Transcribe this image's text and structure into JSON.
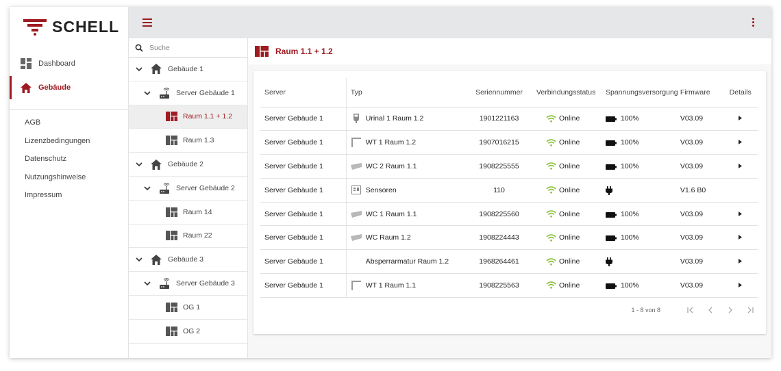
{
  "brand": {
    "name": "SCHELL",
    "accent": "#9e1b21"
  },
  "sidebar": {
    "nav": [
      {
        "label": "Dashboard",
        "icon": "dashboard-icon"
      },
      {
        "label": "Gebäude",
        "icon": "home-icon"
      }
    ],
    "links": [
      "AGB",
      "Lizenzbedingungen",
      "Datenschutz",
      "Nutzungshinweise",
      "Impressum"
    ]
  },
  "tree": {
    "search_placeholder": "Suche",
    "nodes": [
      {
        "label": "Gebäude 1",
        "level": 0,
        "icon": "home-icon"
      },
      {
        "label": "Server Gebäude 1",
        "level": 1,
        "icon": "router-icon"
      },
      {
        "label": "Raum 1.1 + 1.2",
        "level": 2,
        "icon": "room-icon",
        "selected": true
      },
      {
        "label": "Raum 1.3",
        "level": 2,
        "icon": "room-icon"
      },
      {
        "label": "Gebäude 2",
        "level": 0,
        "icon": "home-icon"
      },
      {
        "label": "Server Gebäude 2",
        "level": 1,
        "icon": "router-icon"
      },
      {
        "label": "Raum 14",
        "level": 2,
        "icon": "room-icon"
      },
      {
        "label": "Raum 22",
        "level": 2,
        "icon": "room-icon"
      },
      {
        "label": "Gebäude 3",
        "level": 0,
        "icon": "home-icon"
      },
      {
        "label": "Server Gebäude 3",
        "level": 1,
        "icon": "router-icon"
      },
      {
        "label": "OG 1",
        "level": 2,
        "icon": "room-icon"
      },
      {
        "label": "OG 2",
        "level": 2,
        "icon": "room-icon"
      }
    ]
  },
  "main": {
    "title": "Raum 1.1 + 1.2",
    "table": {
      "headers": [
        "Server",
        "Typ",
        "Seriennummer",
        "Verbindungsstatus",
        "Spannungsversorgung",
        "Firmware",
        "Details"
      ],
      "rows": [
        {
          "server": "Server Gebäude 1",
          "typ": "Urinal 1 Raum 1.2",
          "typ_icon": "urinal-icon",
          "serial": "1901221163",
          "status": "Online",
          "power": "100%",
          "power_icon": "battery-icon",
          "firmware": "V03.09",
          "details": true
        },
        {
          "server": "Server Gebäude 1",
          "typ": "WT 1 Raum 1.2",
          "typ_icon": "washbasin-icon",
          "serial": "1907016215",
          "status": "Online",
          "power": "100%",
          "power_icon": "battery-icon",
          "firmware": "V03.09",
          "details": true
        },
        {
          "server": "Server Gebäude 1",
          "typ": "WC 2 Raum 1.1",
          "typ_icon": "wc-icon",
          "serial": "1908225555",
          "status": "Online",
          "power": "100%",
          "power_icon": "battery-icon",
          "firmware": "V03.09",
          "details": true
        },
        {
          "server": "Server Gebäude 1",
          "typ": "Sensoren",
          "typ_icon": "sensor-icon",
          "serial": "110",
          "status": "Online",
          "power": "",
          "power_icon": "plug-icon",
          "firmware": "V1.6 B0",
          "details": false
        },
        {
          "server": "Server Gebäude 1",
          "typ": "WC 1 Raum 1.1",
          "typ_icon": "wc-icon",
          "serial": "1908225560",
          "status": "Online",
          "power": "100%",
          "power_icon": "battery-icon",
          "firmware": "V03.09",
          "details": true
        },
        {
          "server": "Server Gebäude 1",
          "typ": "WC Raum 1.2",
          "typ_icon": "wc-icon",
          "serial": "1908224443",
          "status": "Online",
          "power": "100%",
          "power_icon": "battery-icon",
          "firmware": "V03.09",
          "details": true
        },
        {
          "server": "Server Gebäude 1",
          "typ": "Absperrarmatur Raum 1.2",
          "typ_icon": "",
          "serial": "1968264461",
          "status": "Online",
          "power": "",
          "power_icon": "plug-icon",
          "firmware": "V03.09",
          "details": true
        },
        {
          "server": "Server Gebäude 1",
          "typ": "WT 1 Raum 1.1",
          "typ_icon": "washbasin-icon",
          "serial": "1908225563",
          "status": "Online",
          "power": "100%",
          "power_icon": "battery-icon",
          "firmware": "V03.09",
          "details": true
        }
      ]
    },
    "pagination": {
      "range": "1 - 8 von 8"
    }
  }
}
